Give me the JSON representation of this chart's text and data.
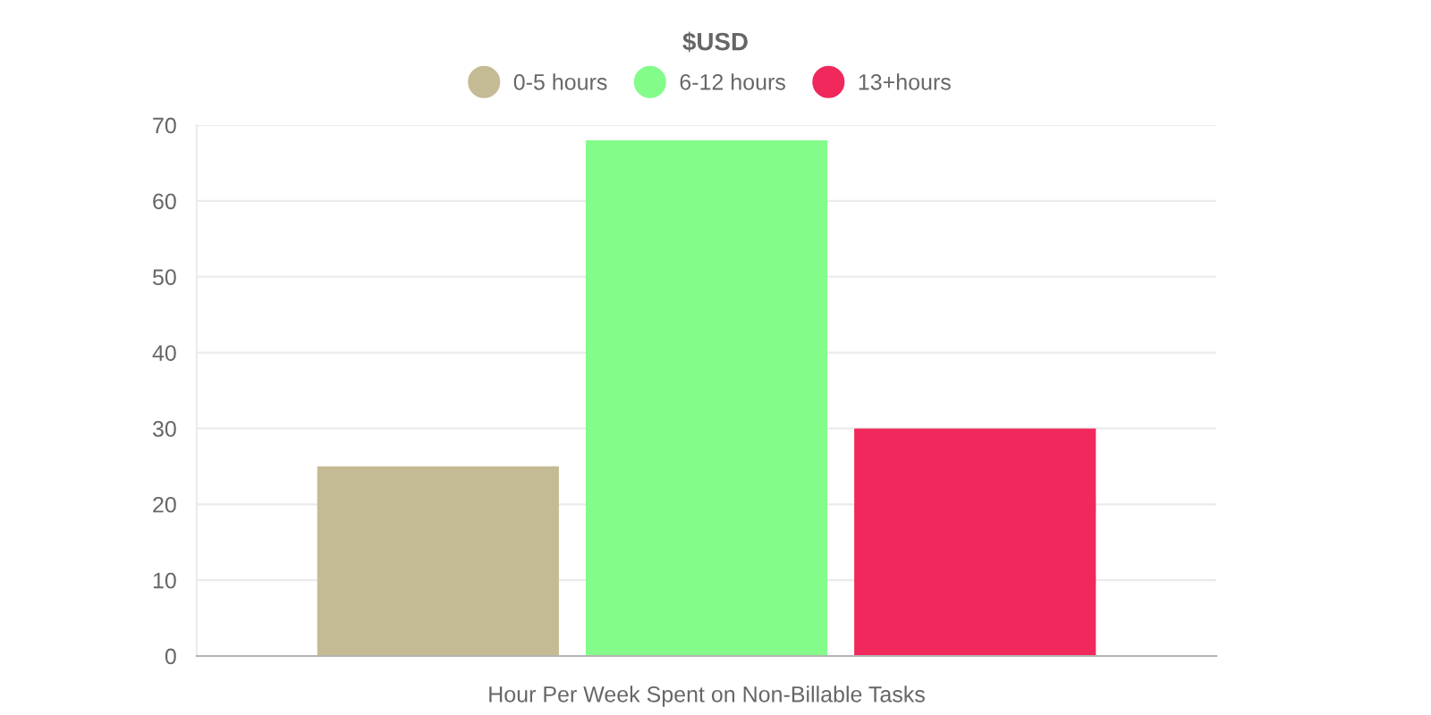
{
  "chart_data": {
    "type": "bar",
    "title": "$USD",
    "categories": [
      "Hour Per Week Spent on Non-Billable Tasks"
    ],
    "series": [
      {
        "name": "0-5 hours",
        "color": "#c4bb94",
        "values": [
          25
        ]
      },
      {
        "name": "6-12 hours",
        "color": "#84fc8a",
        "values": [
          68
        ]
      },
      {
        "name": "13+hours",
        "color": "#f0285c",
        "values": [
          30
        ]
      }
    ],
    "ylim": [
      0,
      70
    ],
    "yticks": [
      0,
      10,
      20,
      30,
      40,
      50,
      60,
      70
    ],
    "grid": "y",
    "legend": "top"
  }
}
